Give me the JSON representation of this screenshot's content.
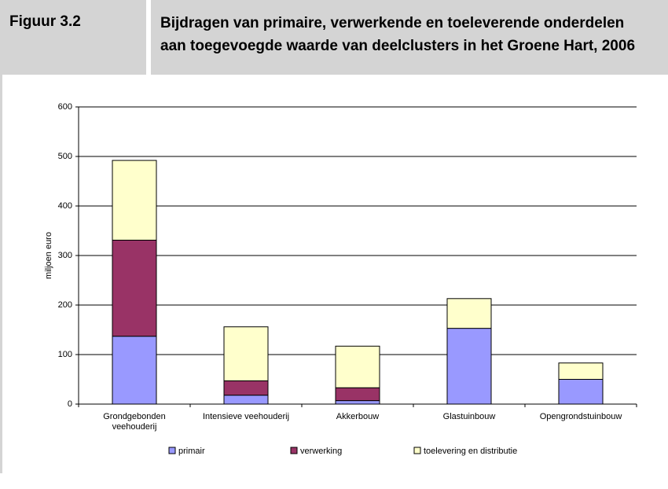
{
  "figure_label": "Figuur 3.2",
  "chart_data": {
    "type": "stacked-bar",
    "title": "Bijdragen van primaire, verwerkende en toeleverende onderdelen aan toegevoegde waarde van deelclusters in het Groene Hart, 2006",
    "ylabel": "miljoen euro",
    "categories": [
      "Grondgebonden\nveehouderij",
      "Intensieve veehouderij",
      "Akkerbouw",
      "Glastuinbouw",
      "Opengrondstuinbouw"
    ],
    "series": [
      {
        "name": "primair",
        "color": "#9999ff",
        "values": [
          137,
          18,
          7,
          153,
          50
        ]
      },
      {
        "name": "verwerking",
        "color": "#993366",
        "values": [
          194,
          29,
          26,
          0,
          0
        ]
      },
      {
        "name": "toelevering en distributie",
        "color": "#ffffcc",
        "values": [
          161,
          109,
          84,
          60,
          33
        ]
      }
    ],
    "ylim": [
      0,
      600
    ],
    "yticks": [
      0,
      100,
      200,
      300,
      400,
      500,
      600
    ],
    "grid": true,
    "legend": "bottom"
  }
}
